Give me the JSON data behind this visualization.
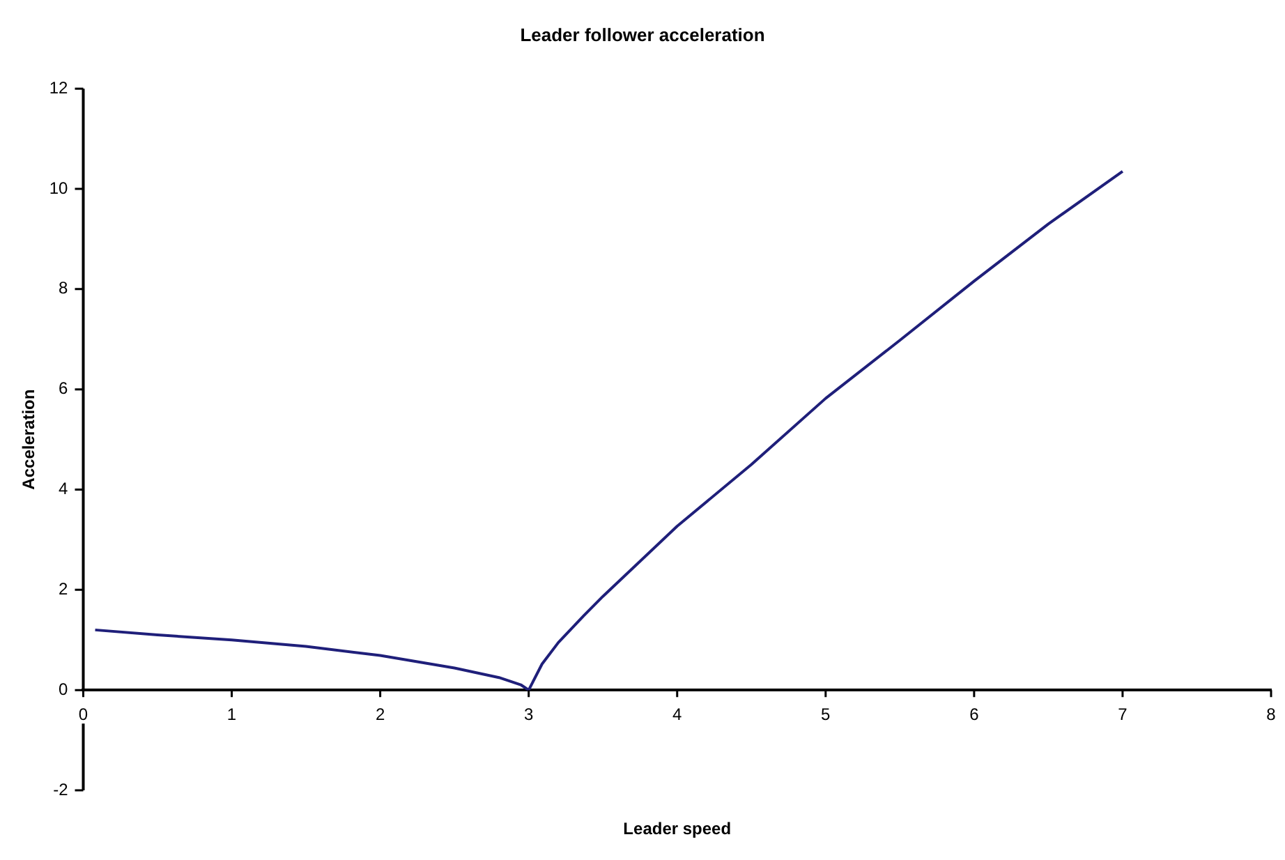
{
  "chart_data": {
    "type": "line",
    "title": "Leader follower acceleration",
    "xlabel": "Leader speed",
    "ylabel": "Acceleration",
    "x": [
      0.08,
      0.5,
      1,
      1.5,
      2,
      2.5,
      2.8,
      2.95,
      3,
      3.09,
      3.2,
      3.37,
      3.5,
      4,
      4.5,
      5,
      5.5,
      6,
      6.5,
      7
    ],
    "series": [
      {
        "color": "#1f1f7a",
        "values": [
          1.2,
          1.1,
          1.0,
          0.87,
          0.69,
          0.44,
          0.25,
          0.1,
          0,
          0.52,
          0.95,
          1.48,
          1.87,
          3.27,
          4.5,
          5.82,
          6.98,
          8.16,
          9.3,
          10.35
        ]
      }
    ],
    "xlim": [
      0,
      8
    ],
    "xticks": [
      0,
      1,
      2,
      3,
      4,
      5,
      6,
      7,
      8
    ],
    "ylim": [
      -2,
      12
    ],
    "yticks": [
      -2,
      0,
      2,
      4,
      6,
      8,
      10,
      12
    ],
    "grid": false,
    "legend": false,
    "marker": "none",
    "line_style": "solid"
  }
}
